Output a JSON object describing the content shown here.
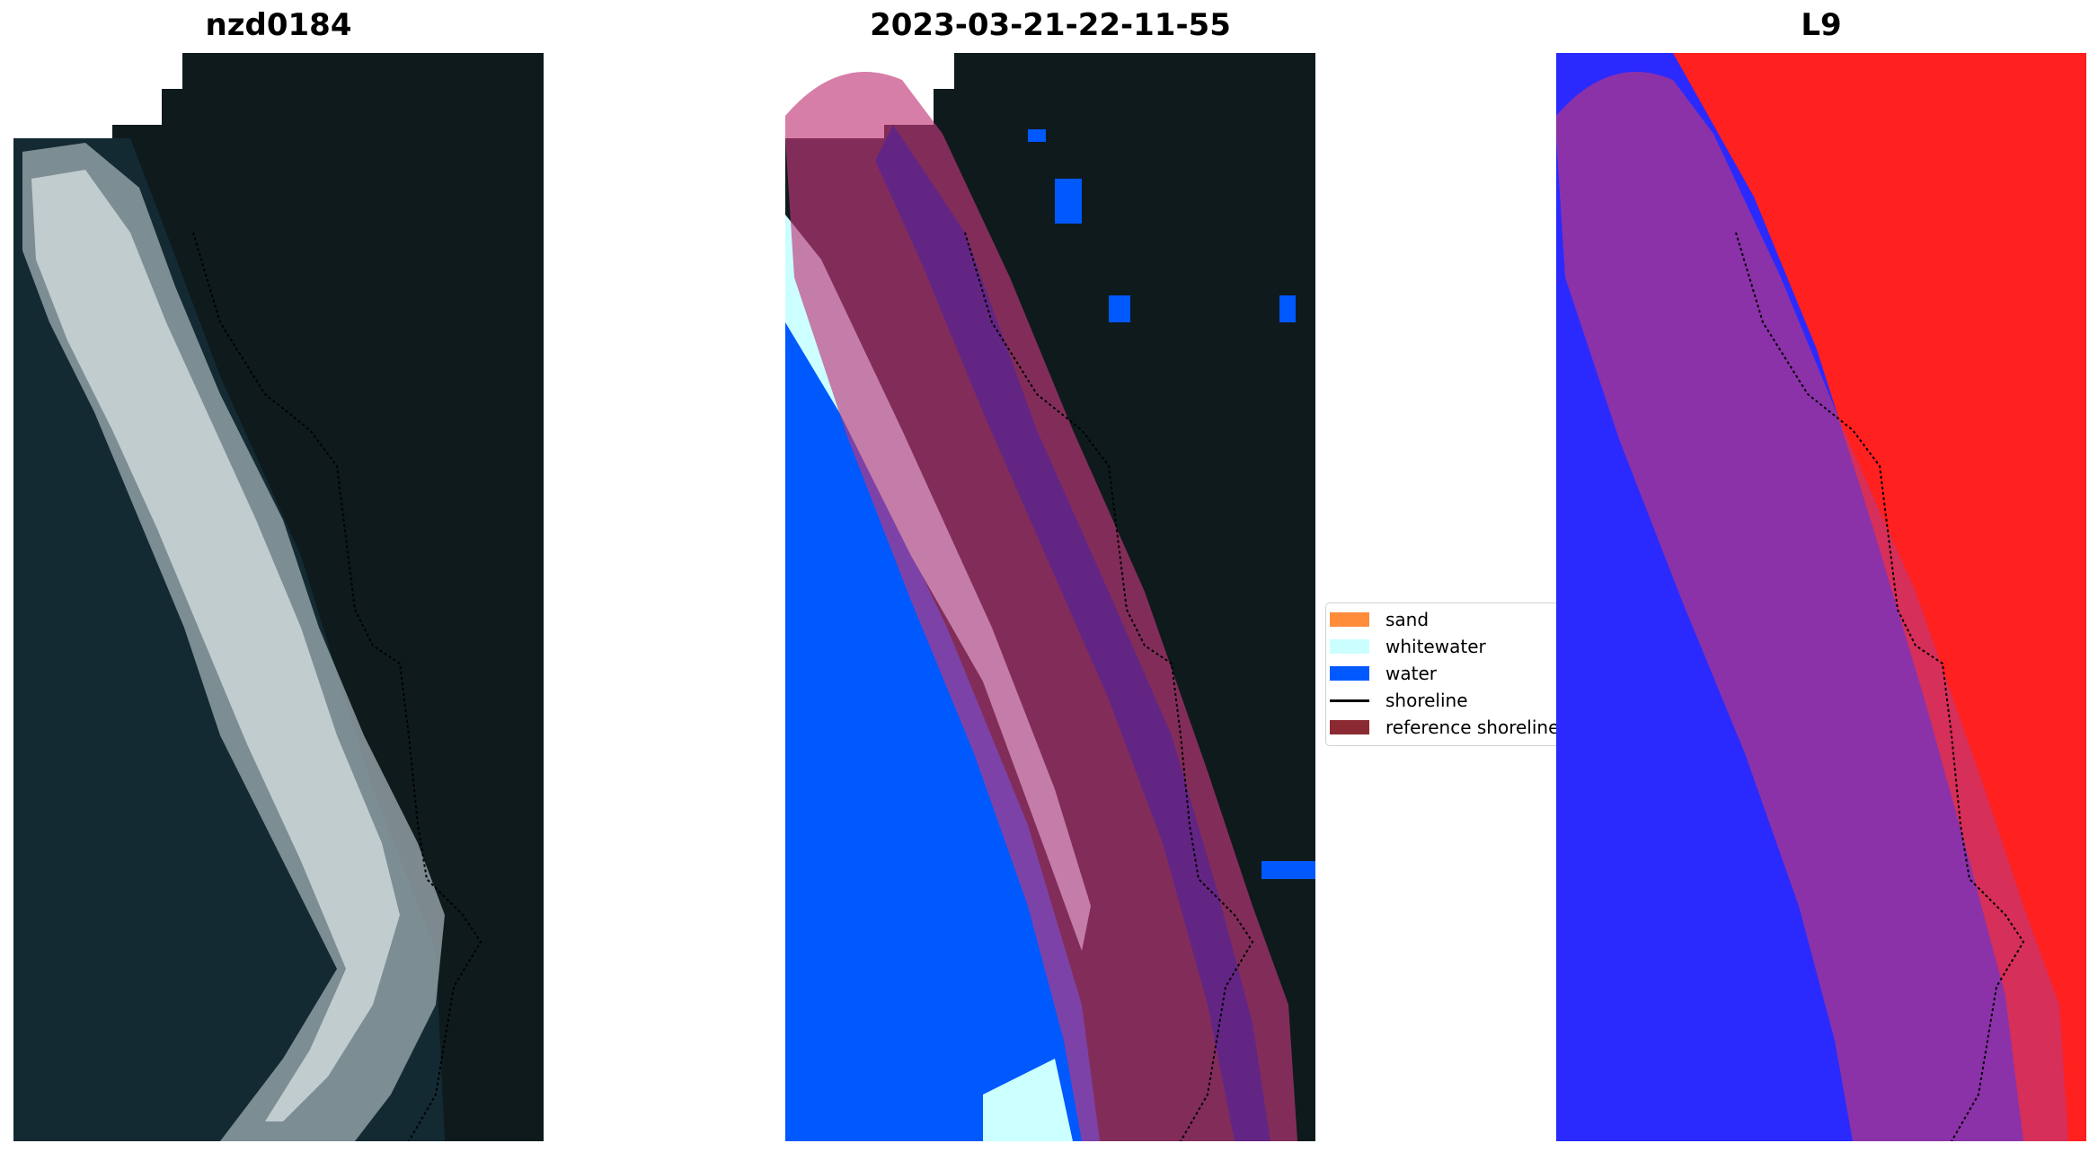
{
  "panels": [
    {
      "title": "nzd0184"
    },
    {
      "title": "2023-03-21-22-11-55"
    },
    {
      "title": "L9"
    }
  ],
  "legend": {
    "items": [
      {
        "label": "sand",
        "color": "#ff8c3b"
      },
      {
        "label": "whitewater",
        "color": "#ccffff"
      },
      {
        "label": "water",
        "color": "#0058ff"
      },
      {
        "label": "shoreline",
        "color": "#000000"
      },
      {
        "label": "reference shoreline",
        "color": "#8b2a32"
      }
    ]
  },
  "colors": {
    "land_dark": "#0f1a1d",
    "ocean_dark": "#132a33",
    "buffer_overlay": "#c0377a",
    "classified_water": "#0058ff",
    "classified_whitewater": "#ccffff",
    "index_positive": "#ff2020",
    "index_negative": "#2a2aff"
  }
}
